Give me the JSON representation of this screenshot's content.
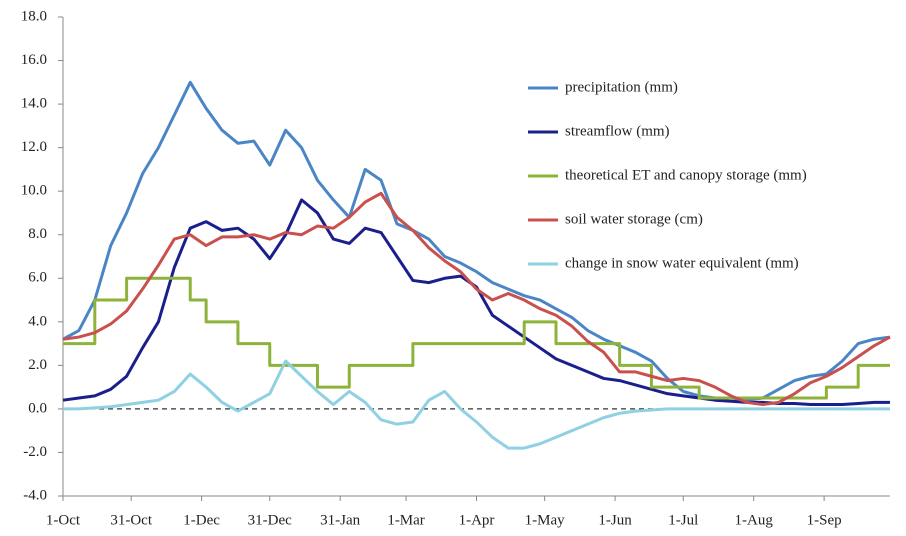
{
  "chart_data": {
    "type": "line",
    "x": [
      0,
      7,
      14,
      21,
      28,
      35,
      42,
      49,
      56,
      63,
      70,
      77,
      84,
      91,
      98,
      105,
      112,
      119,
      126,
      133,
      140,
      147,
      154,
      161,
      168,
      175,
      182,
      189,
      196,
      203,
      210,
      217,
      224,
      231,
      238,
      245,
      252,
      259,
      266,
      273,
      280,
      287,
      294,
      301,
      308,
      315,
      322,
      329,
      336,
      343,
      350,
      357,
      364
    ],
    "xlim": [
      0,
      364
    ],
    "xticks": [
      {
        "value": 0,
        "label": "1-Oct"
      },
      {
        "value": 30,
        "label": "31-Oct"
      },
      {
        "value": 61,
        "label": "1-Dec"
      },
      {
        "value": 91,
        "label": "31-Dec"
      },
      {
        "value": 122,
        "label": "31-Jan"
      },
      {
        "value": 151,
        "label": "1-Mar"
      },
      {
        "value": 182,
        "label": "1-Apr"
      },
      {
        "value": 212,
        "label": "1-May"
      },
      {
        "value": 243,
        "label": "1-Jun"
      },
      {
        "value": 273,
        "label": "1-Jul"
      },
      {
        "value": 304,
        "label": "1-Aug"
      },
      {
        "value": 335,
        "label": "1-Sep"
      }
    ],
    "ylim": [
      -4,
      18
    ],
    "yticks": [
      {
        "value": -4,
        "label": "-4.0"
      },
      {
        "value": -2,
        "label": "-2.0"
      },
      {
        "value": 0,
        "label": "0.0"
      },
      {
        "value": 2,
        "label": "2.0"
      },
      {
        "value": 4,
        "label": "4.0"
      },
      {
        "value": 6,
        "label": "6.0"
      },
      {
        "value": 8,
        "label": "8.0"
      },
      {
        "value": 10,
        "label": "10.0"
      },
      {
        "value": 12,
        "label": "12.0"
      },
      {
        "value": 14,
        "label": "14.0"
      },
      {
        "value": 16,
        "label": "16.0"
      },
      {
        "value": 18,
        "label": "18.0"
      }
    ],
    "grid": false,
    "zero_line": "dashed",
    "legend": "right",
    "series": [
      {
        "name": "precipitation (mm)",
        "color": "#4a86c6",
        "values": [
          3.2,
          3.6,
          5.0,
          7.5,
          9.0,
          10.8,
          12.0,
          13.5,
          15.0,
          13.8,
          12.8,
          12.2,
          12.3,
          11.2,
          12.8,
          12.0,
          10.5,
          9.6,
          8.8,
          11.0,
          10.5,
          8.5,
          8.2,
          7.8,
          7.0,
          6.7,
          6.3,
          5.8,
          5.5,
          5.2,
          5.0,
          4.6,
          4.2,
          3.6,
          3.2,
          2.9,
          2.6,
          2.2,
          1.4,
          0.8,
          0.6,
          0.5,
          0.5,
          0.4,
          0.5,
          0.9,
          1.3,
          1.5,
          1.6,
          2.2,
          3.0,
          3.2,
          3.3
        ]
      },
      {
        "name": "streamflow (mm)",
        "color": "#1a1f8c",
        "values": [
          0.4,
          0.5,
          0.6,
          0.9,
          1.5,
          2.8,
          4.0,
          6.5,
          8.3,
          8.6,
          8.2,
          8.3,
          7.8,
          6.9,
          8.0,
          9.6,
          9.0,
          7.8,
          7.6,
          8.3,
          8.1,
          7.0,
          5.9,
          5.8,
          6.0,
          6.1,
          5.6,
          4.3,
          3.8,
          3.3,
          2.8,
          2.3,
          2.0,
          1.7,
          1.4,
          1.3,
          1.1,
          0.9,
          0.7,
          0.6,
          0.5,
          0.4,
          0.35,
          0.3,
          0.3,
          0.25,
          0.25,
          0.2,
          0.2,
          0.2,
          0.25,
          0.3,
          0.3
        ]
      },
      {
        "name": "theoretical ET and canopy storage (mm)",
        "color": "#8db33a",
        "step": true,
        "values": [
          3,
          3,
          5,
          5,
          6,
          6,
          6,
          6,
          5,
          4,
          4,
          3,
          3,
          2,
          2,
          2,
          1,
          1,
          2,
          2,
          2,
          2,
          3,
          3,
          3,
          3,
          3,
          3,
          3,
          4,
          4,
          3,
          3,
          3,
          3,
          2,
          2,
          1,
          1,
          1,
          0.5,
          0.5,
          0.5,
          0.5,
          0.5,
          0.5,
          0.5,
          0.5,
          1,
          1,
          2,
          2,
          2
        ]
      },
      {
        "name": "soil water storage (cm)",
        "color": "#c9504d",
        "values": [
          3.2,
          3.3,
          3.5,
          3.9,
          4.5,
          5.5,
          6.6,
          7.8,
          8.0,
          7.5,
          7.9,
          7.9,
          8.0,
          7.8,
          8.1,
          8.0,
          8.4,
          8.3,
          8.8,
          9.5,
          9.9,
          8.8,
          8.2,
          7.4,
          6.8,
          6.3,
          5.5,
          5.0,
          5.3,
          5.0,
          4.6,
          4.3,
          3.8,
          3.1,
          2.6,
          1.7,
          1.7,
          1.5,
          1.3,
          1.4,
          1.3,
          1.0,
          0.6,
          0.3,
          0.2,
          0.3,
          0.7,
          1.2,
          1.5,
          1.9,
          2.4,
          2.9,
          3.3
        ]
      },
      {
        "name": "change in snow water equivalent (mm)",
        "color": "#8fd0e2",
        "values": [
          0.0,
          0.0,
          0.05,
          0.1,
          0.2,
          0.3,
          0.4,
          0.8,
          1.6,
          1.0,
          0.3,
          -0.1,
          0.3,
          0.7,
          2.2,
          1.5,
          0.8,
          0.2,
          0.8,
          0.3,
          -0.5,
          -0.7,
          -0.6,
          0.4,
          0.8,
          0.0,
          -0.6,
          -1.3,
          -1.8,
          -1.8,
          -1.6,
          -1.3,
          -1.0,
          -0.7,
          -0.4,
          -0.2,
          -0.1,
          -0.05,
          0,
          0,
          0,
          0,
          0,
          0,
          0,
          0,
          0,
          0,
          0,
          0,
          0,
          0,
          0
        ]
      }
    ]
  }
}
